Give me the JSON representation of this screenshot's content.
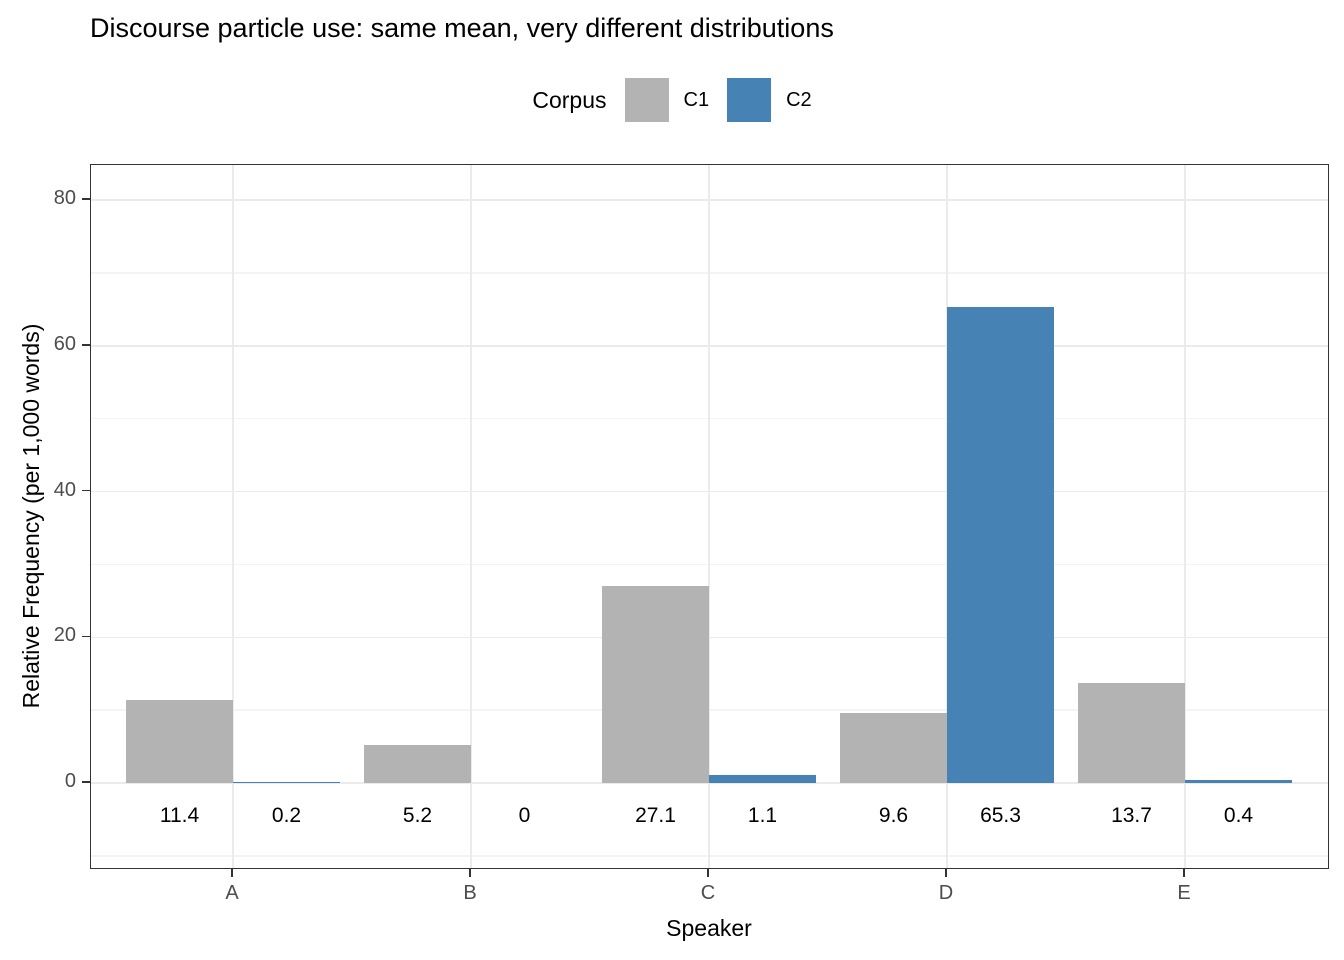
{
  "chart_data": {
    "type": "bar",
    "title": "Discourse particle use: same mean, very different distributions",
    "xlabel": "Speaker",
    "ylabel": "Relative Frequency (per 1,000 words)",
    "categories": [
      "A",
      "B",
      "C",
      "D",
      "E"
    ],
    "series": [
      {
        "name": "C1",
        "color": "#b3b3b3",
        "values": [
          11.4,
          5.2,
          27.1,
          9.6,
          13.7
        ],
        "labels": [
          "11.4",
          "5.2",
          "27.1",
          "9.6",
          "13.7"
        ]
      },
      {
        "name": "C2",
        "color": "#4682b4",
        "values": [
          0.2,
          0,
          1.1,
          65.3,
          0.4
        ],
        "labels": [
          "0.2",
          "0",
          "1.1",
          "65.3",
          "0.4"
        ]
      }
    ],
    "y_major_ticks": [
      0,
      20,
      40,
      60,
      80
    ],
    "y_minor_ticks": [
      -10,
      10,
      30,
      50,
      70
    ],
    "ylim": [
      -11.9,
      84.9
    ],
    "grid": true,
    "legend_position": "top"
  },
  "legend": {
    "title": "Corpus",
    "entries": [
      {
        "label": "C1",
        "color": "#b3b3b3"
      },
      {
        "label": "C2",
        "color": "#4682b4"
      }
    ]
  },
  "colors": {
    "bar_c1": "#b3b3b3",
    "bar_c2": "#4682b4",
    "grid_major": "#ebebeb",
    "grid_minor": "#f4f4f4",
    "panel_border": "#333333",
    "axis_tick": "#333333",
    "tick_label": "#4d4d4d",
    "text": "#000000"
  }
}
